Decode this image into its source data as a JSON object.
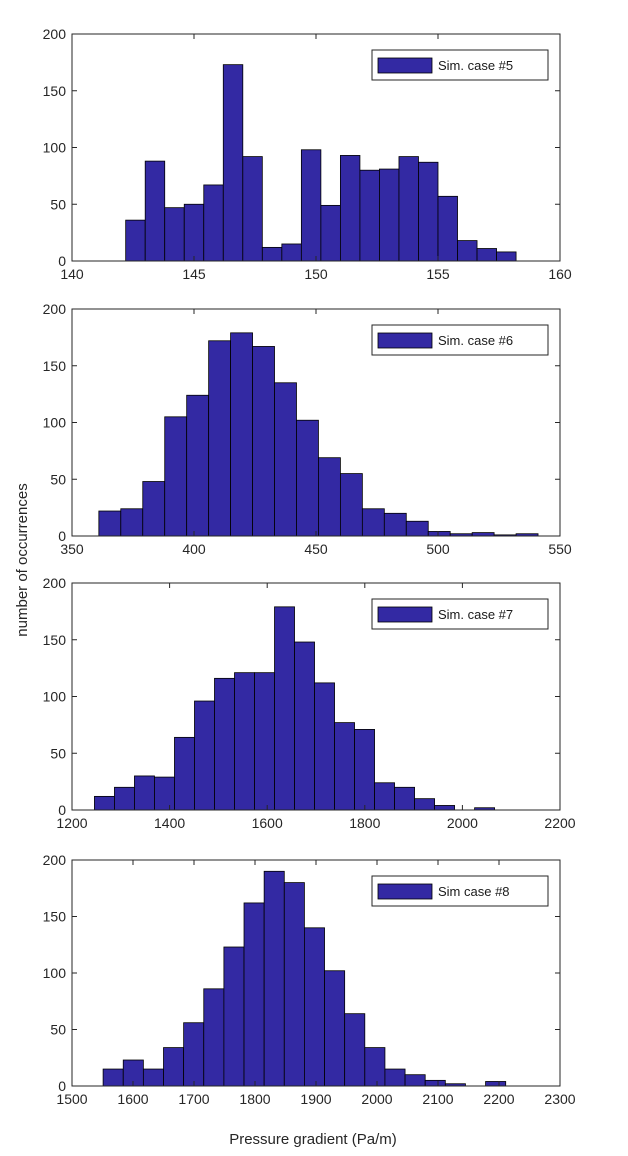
{
  "figure": {
    "ylabel": "number of occurrences",
    "xlabel": "Pressure gradient (Pa/m)",
    "bar_color": "#3329a3",
    "bar_edge_color": "#000000"
  },
  "chart_data": [
    {
      "type": "bar",
      "legend": "Sim. case #5",
      "legend_position": "top-right",
      "xlim": [
        140,
        160
      ],
      "ylim": [
        0,
        200
      ],
      "xticks": [
        140,
        145,
        150,
        155,
        160
      ],
      "yticks": [
        0,
        50,
        100,
        150,
        200
      ],
      "bin_edges": [
        142.2,
        143.0,
        143.8,
        144.6,
        145.4,
        146.2,
        147.0,
        147.8,
        148.6,
        149.4,
        150.2,
        151.0,
        151.8,
        152.6,
        153.4,
        154.2,
        155.0,
        155.8,
        156.6,
        157.4,
        158.2
      ],
      "values": [
        36,
        88,
        47,
        50,
        67,
        173,
        92,
        12,
        15,
        98,
        49,
        93,
        80,
        81,
        92,
        87,
        57,
        18,
        11,
        8
      ]
    },
    {
      "type": "bar",
      "legend": "Sim. case #6",
      "legend_position": "top-right",
      "xlim": [
        350,
        550
      ],
      "ylim": [
        0,
        200
      ],
      "xticks": [
        350,
        400,
        450,
        500,
        550
      ],
      "yticks": [
        0,
        50,
        100,
        150,
        200
      ],
      "bin_edges": [
        361,
        370,
        379,
        388,
        397,
        406,
        415,
        424,
        433,
        442,
        451,
        460,
        469,
        478,
        487,
        496,
        505,
        514,
        523,
        532,
        541
      ],
      "values": [
        22,
        24,
        48,
        105,
        124,
        172,
        179,
        167,
        135,
        102,
        69,
        55,
        24,
        20,
        13,
        4,
        2,
        3,
        1,
        2
      ]
    },
    {
      "type": "bar",
      "legend": "Sim. case #7",
      "legend_position": "top-right",
      "xlim": [
        1200,
        2200
      ],
      "ylim": [
        0,
        200
      ],
      "xticks": [
        1200,
        1400,
        1600,
        1800,
        2000,
        2200
      ],
      "yticks": [
        0,
        50,
        100,
        150,
        200
      ],
      "bin_edges": [
        1246,
        1287,
        1328,
        1369,
        1410,
        1451,
        1492,
        1533,
        1574,
        1615,
        1656,
        1697,
        1738,
        1779,
        1820,
        1861,
        1902,
        1943,
        1984,
        2025,
        2066
      ],
      "values": [
        12,
        20,
        30,
        29,
        64,
        96,
        116,
        121,
        121,
        179,
        148,
        112,
        77,
        71,
        24,
        20,
        10,
        4,
        0,
        2
      ]
    },
    {
      "type": "bar",
      "legend": "Sim case #8",
      "legend_position": "top-right",
      "xlim": [
        1500,
        2300
      ],
      "ylim": [
        0,
        200
      ],
      "xticks": [
        1500,
        1600,
        1700,
        1800,
        1900,
        2000,
        2100,
        2200,
        2300
      ],
      "yticks": [
        0,
        50,
        100,
        150,
        200
      ],
      "bin_edges": [
        1551,
        1584,
        1617,
        1650,
        1683,
        1716,
        1749,
        1782,
        1815,
        1848,
        1881,
        1914,
        1947,
        1980,
        2013,
        2046,
        2079,
        2112,
        2145,
        2178,
        2211
      ],
      "values": [
        15,
        23,
        15,
        34,
        56,
        86,
        123,
        162,
        190,
        180,
        140,
        102,
        64,
        34,
        15,
        10,
        5,
        2,
        0,
        4
      ]
    }
  ]
}
